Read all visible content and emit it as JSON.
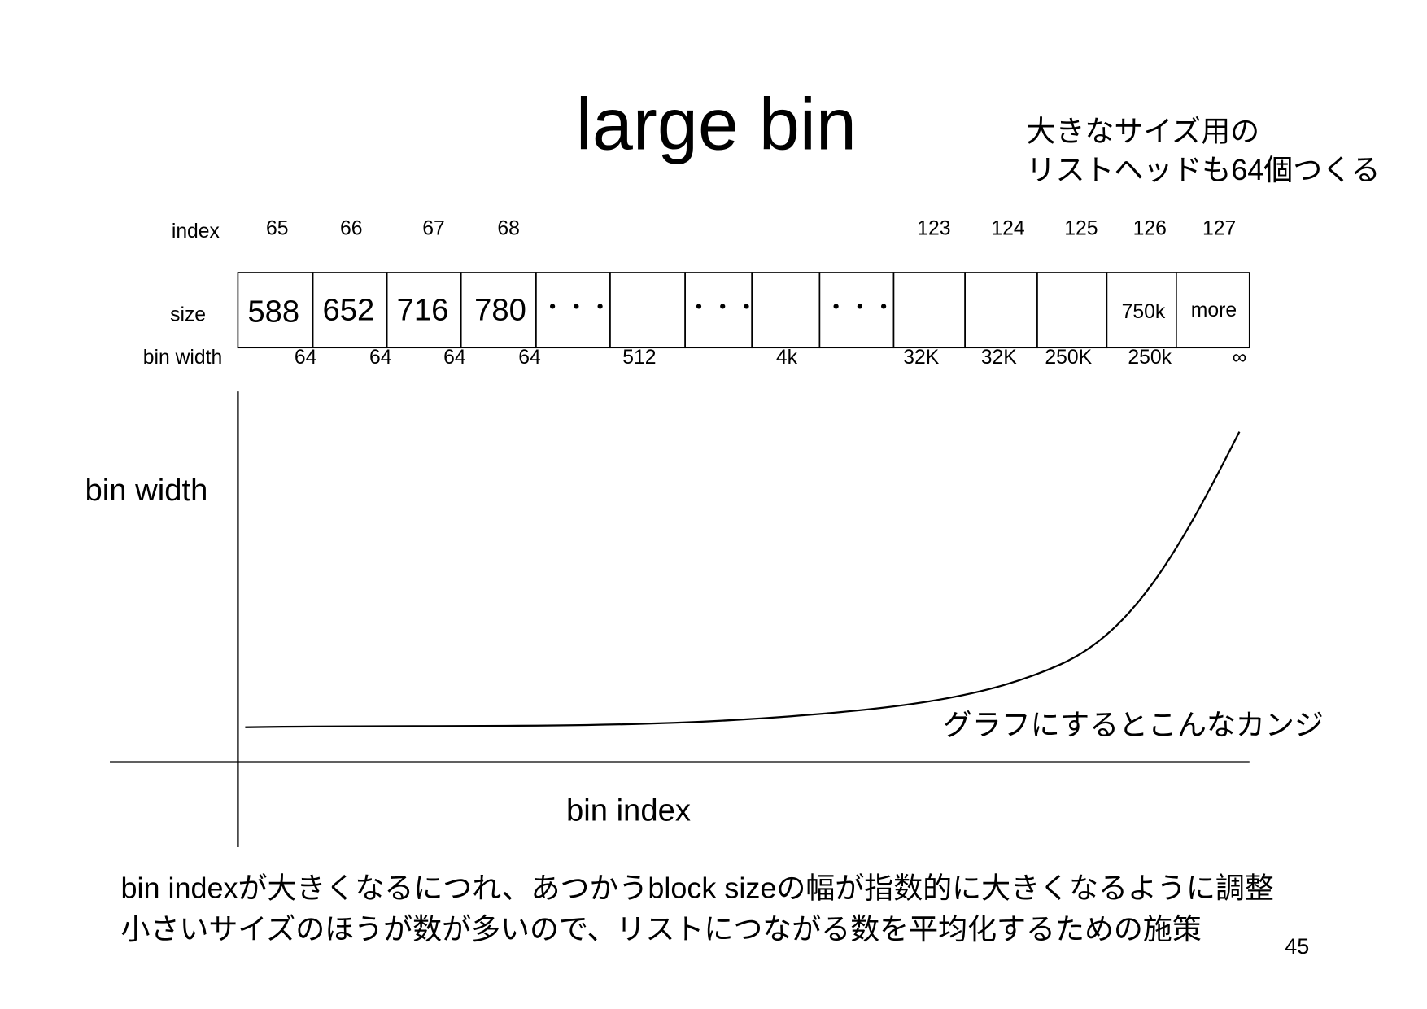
{
  "title": "large bin",
  "note": [
    "大きなサイズ用の",
    "リストヘッドも64個つくる"
  ],
  "row_labels": {
    "index": "index",
    "size": "size",
    "bin_width": "bin width"
  },
  "indices": [
    "65",
    "66",
    "67",
    "68",
    "123",
    "124",
    "125",
    "126",
    "127"
  ],
  "size_cells": [
    "588",
    "652",
    "716",
    "780",
    "・・・",
    "・・・",
    "・・・",
    "750k",
    "more"
  ],
  "bin_widths": [
    "64",
    "64",
    "64",
    "64",
    "512",
    "4k",
    "32K",
    "32K",
    "250K",
    "250k",
    "∞"
  ],
  "graph": {
    "y_label": "bin width",
    "x_label": "bin index",
    "annotation": "グラフにするとこんなカンジ"
  },
  "footer": [
    "bin indexが大きくなるにつれ、あつかうblock sizeの幅が指数的に大きくなるように調整",
    "小さいサイズのほうが数が多いので、リストにつながる数を平均化するための施策"
  ],
  "page_number": "45"
}
